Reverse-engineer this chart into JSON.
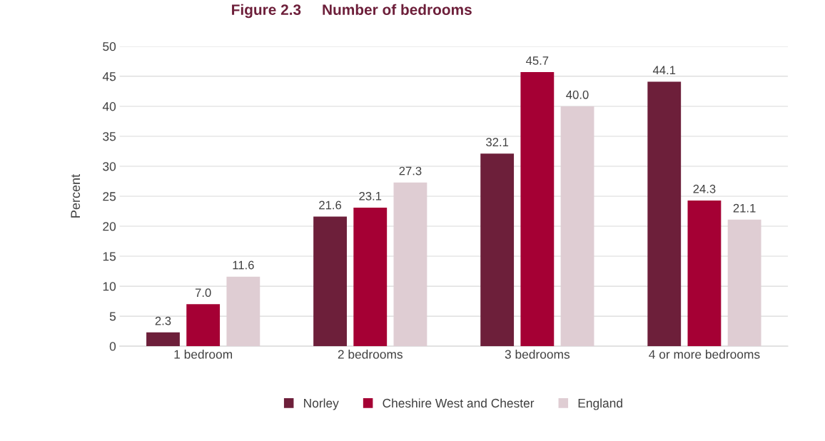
{
  "chart_data": {
    "type": "bar",
    "title": "Figure 2.3     Number of bedrooms",
    "ylabel": "Percent",
    "categories": [
      "1 bedroom",
      "2 bedrooms",
      "3 bedrooms",
      "4 or more bedrooms"
    ],
    "series": [
      {
        "name": "Norley",
        "color": "#6d1f3a",
        "values": [
          2.3,
          21.6,
          32.1,
          44.1
        ]
      },
      {
        "name": "Cheshire West and Chester",
        "color": "#a50034",
        "values": [
          7.0,
          23.1,
          45.7,
          24.3
        ]
      },
      {
        "name": "England",
        "color": "#dfcdd3",
        "values": [
          11.6,
          27.3,
          40.0,
          21.1
        ]
      }
    ],
    "value_labels": [
      [
        "2.3",
        "21.6",
        "32.1",
        "44.1"
      ],
      [
        "7.0",
        "23.1",
        "45.7",
        "24.3"
      ],
      [
        "11.6",
        "27.3",
        "40.0",
        "21.1"
      ]
    ],
    "ylim": [
      0,
      50
    ],
    "yticks": [
      0,
      5,
      10,
      15,
      20,
      25,
      30,
      35,
      40,
      45,
      50
    ],
    "grid": "y",
    "legend": "bottom"
  }
}
